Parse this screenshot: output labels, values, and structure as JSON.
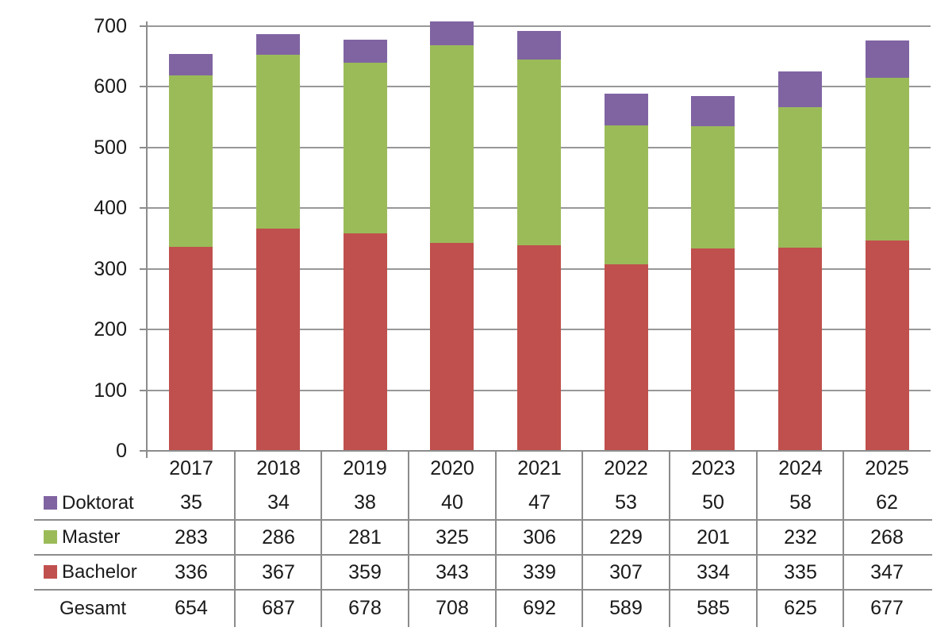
{
  "chart_data": {
    "type": "bar",
    "stacked": true,
    "title": "",
    "categories": [
      "2017",
      "2018",
      "2019",
      "2020",
      "2021",
      "2022",
      "2023",
      "2024",
      "2025"
    ],
    "series": [
      {
        "name": "Bachelor",
        "color": "#C0504D",
        "values": [
          336,
          367,
          359,
          343,
          339,
          307,
          334,
          335,
          347
        ]
      },
      {
        "name": "Master",
        "color": "#9BBB59",
        "values": [
          283,
          286,
          281,
          325,
          306,
          229,
          201,
          232,
          268
        ]
      },
      {
        "name": "Doktorat",
        "color": "#8064A2",
        "values": [
          35,
          34,
          38,
          40,
          47,
          53,
          50,
          58,
          62
        ]
      }
    ],
    "totals_row": {
      "name": "Gesamt",
      "values": [
        654,
        687,
        678,
        708,
        692,
        589,
        585,
        625,
        677
      ]
    },
    "table_row_order": [
      "Doktorat",
      "Master",
      "Bachelor",
      "Gesamt"
    ],
    "ylim": [
      0,
      700
    ],
    "ytick_interval": 100,
    "ytick_labels": [
      "0",
      "100",
      "200",
      "300",
      "400",
      "500",
      "600",
      "700"
    ],
    "grid": true,
    "legend_position": "data-table-left"
  },
  "colors": {
    "background": "#FFFFFF",
    "gridline": "#989898",
    "axis_line": "#8C8C8C",
    "table_line": "#8C8C8C",
    "text": "#1A1A1A"
  }
}
